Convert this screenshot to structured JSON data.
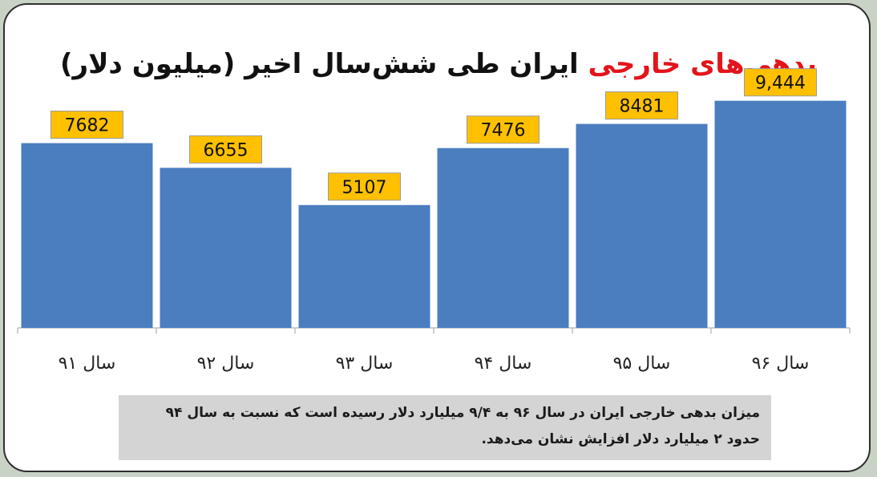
{
  "title": {
    "highlight": "بدهی‌های خارجی",
    "rest": " ایران طی شش‌سال اخیر (میلیون دلار)"
  },
  "colors": {
    "bar": "#4a7ebf",
    "label_box": "#ffc000",
    "title_highlight": "#e3141b"
  },
  "chart_data": {
    "type": "bar",
    "title": "بدهی‌های خارجی ایران طی شش‌سال اخیر (میلیون دلار)",
    "categories": [
      "سال ۹۱",
      "سال ۹۲",
      "سال ۹۳",
      "سال ۹۴",
      "سال ۹۵",
      "سال ۹۶"
    ],
    "values": [
      7682,
      6655,
      5107,
      7476,
      8481,
      9444
    ],
    "data_labels": [
      "7682",
      "6655",
      "5107",
      "7476",
      "8481",
      "9,444"
    ],
    "xlabel": "",
    "ylabel": "",
    "ylim": [
      0,
      12500
    ],
    "grid": false,
    "legend": "none"
  },
  "note": {
    "line1": "میزان بدهی خارجی ایران در سال ۹۶ به ۹/۴ میلیارد دلار رسیده است که نسبت به سال ۹۴",
    "line2": "حدود ۲ میلیارد دلار افزایش نشان می‌دهد."
  }
}
